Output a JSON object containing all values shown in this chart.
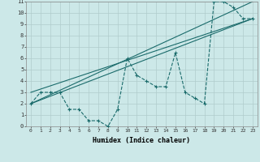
{
  "title": "",
  "xlabel": "Humidex (Indice chaleur)",
  "background_color": "#cce8e8",
  "grid_color": "#b0cccc",
  "line_color": "#1a6b6b",
  "xlim": [
    -0.5,
    23.5
  ],
  "ylim": [
    0,
    11
  ],
  "xticks": [
    0,
    1,
    2,
    3,
    4,
    5,
    6,
    7,
    8,
    9,
    10,
    11,
    12,
    13,
    14,
    15,
    16,
    17,
    18,
    19,
    20,
    21,
    22,
    23
  ],
  "yticks": [
    0,
    1,
    2,
    3,
    4,
    5,
    6,
    7,
    8,
    9,
    10,
    11
  ],
  "line1_x": [
    0,
    1,
    2,
    3,
    4,
    5,
    6,
    7,
    8,
    9,
    10,
    11,
    12,
    13,
    14,
    15,
    16,
    17,
    18,
    19,
    20,
    21,
    22,
    23
  ],
  "line1_y": [
    2,
    3,
    3,
    3,
    1.5,
    1.5,
    0.5,
    0.5,
    0,
    1.5,
    6,
    4.5,
    4,
    3.5,
    3.5,
    6.5,
    3,
    2.5,
    2,
    11,
    11,
    10.5,
    9.5,
    9.5
  ],
  "line2_x": [
    0,
    23
  ],
  "line2_y": [
    2,
    9.5
  ],
  "line3_x": [
    0,
    23
  ],
  "line3_y": [
    3,
    9.5
  ],
  "line4_x": [
    0,
    23
  ],
  "line4_y": [
    2,
    11
  ]
}
